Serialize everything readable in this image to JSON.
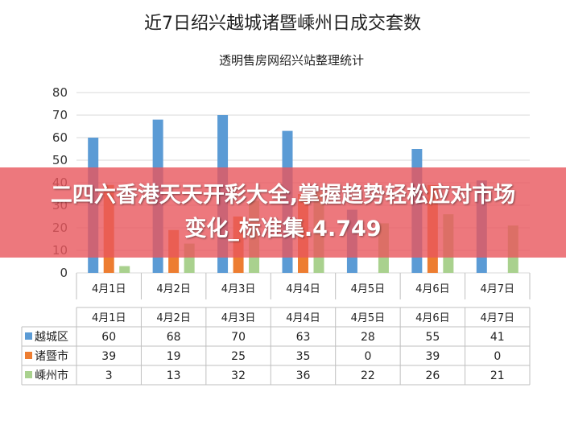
{
  "chart_data": {
    "type": "bar",
    "title": "近7日绍兴越城诸暨嵊州日成交套数",
    "subtitle": "透明售房网绍兴站整理统计",
    "categories": [
      "4月1日",
      "4月2日",
      "4月3日",
      "4月4日",
      "4月5日",
      "4月6日",
      "4月7日"
    ],
    "series": [
      {
        "name": "越城区",
        "color": "#5b9bd5",
        "values": [
          60,
          68,
          70,
          63,
          28,
          55,
          41
        ]
      },
      {
        "name": "诸暨市",
        "color": "#ed7d31",
        "values": [
          39,
          19,
          25,
          35,
          0,
          39,
          0
        ]
      },
      {
        "name": "嵊州市",
        "color": "#a9d18e",
        "values": [
          3,
          13,
          32,
          36,
          22,
          26,
          21
        ]
      }
    ],
    "ylim": [
      0,
      80
    ],
    "yticks": [
      0,
      10,
      20,
      30,
      40,
      50,
      60,
      70,
      80
    ],
    "grid": true,
    "legend": "data-table"
  },
  "overlay": {
    "banner_text": "二四六香港天天开彩大全,掌握趋势轻松应对市场变化_标准集.4.749"
  }
}
